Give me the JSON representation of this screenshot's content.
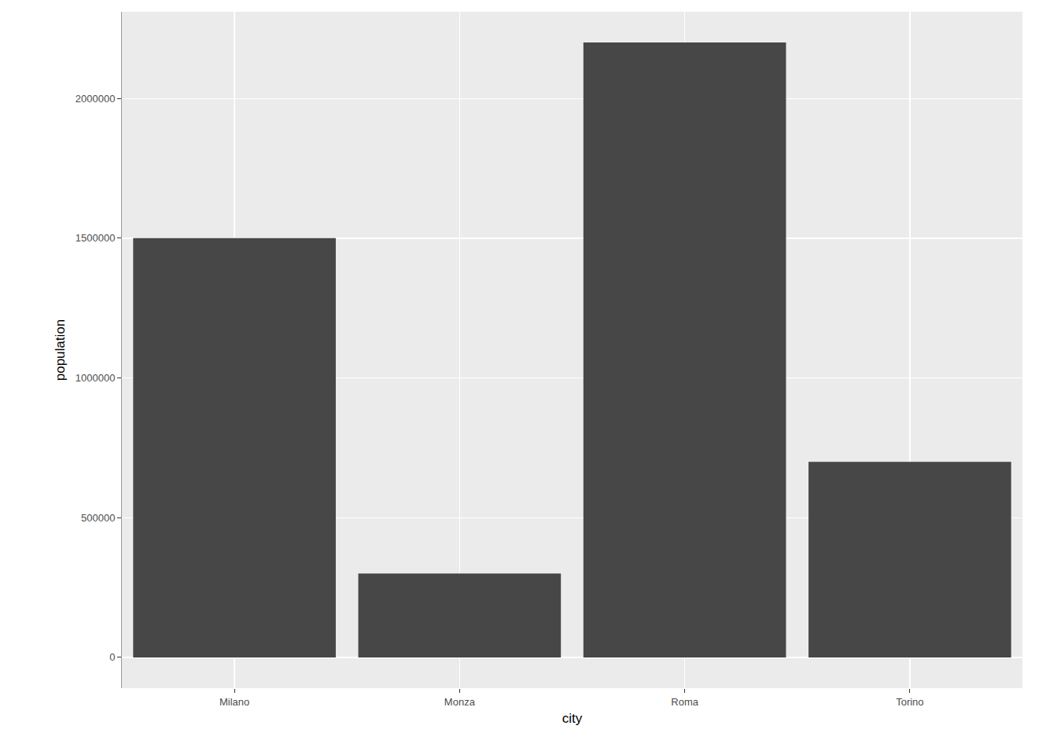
{
  "chart_data": {
    "type": "bar",
    "x_label": "city",
    "y_label": "population",
    "categories": [
      "Milano",
      "Monza",
      "Roma",
      "Torino"
    ],
    "values": [
      1500000,
      300000,
      2200000,
      700000
    ],
    "color": "#474747",
    "ylim": [
      -110000,
      2310000
    ],
    "yticks": [
      0,
      500000,
      1000000,
      1500000,
      2000000
    ],
    "grid": true
  }
}
